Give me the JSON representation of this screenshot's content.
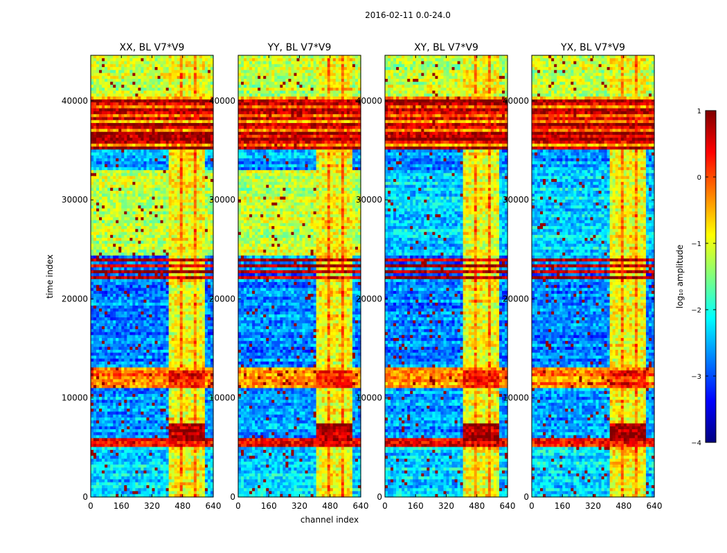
{
  "figure_title": "2016-02-11 0.0-24.0",
  "chart_data": {
    "type": "heatmap",
    "title": "2016-02-11 0.0-24.0",
    "shared_xlabel": "channel index",
    "shared_ylabel": "time index",
    "xlim": [
      0,
      640
    ],
    "ylim": [
      0,
      44600
    ],
    "x_ticks": [
      0,
      160,
      320,
      480,
      640
    ],
    "y_ticks": [
      0,
      10000,
      20000,
      30000,
      40000
    ],
    "panels": [
      {
        "title": "XX, BL V7*V9",
        "polarization": "XX"
      },
      {
        "title": "YY, BL V7*V9",
        "polarization": "YY"
      },
      {
        "title": "XY, BL V7*V9",
        "polarization": "XY"
      },
      {
        "title": "YX, BL V7*V9",
        "polarization": "YX"
      }
    ],
    "colorbar": {
      "label": "log₁₀ amplitude",
      "range": [
        -4,
        1
      ],
      "ticks": [
        1,
        0,
        -1,
        -2,
        -3,
        -4
      ],
      "tick_labels": [
        "1",
        "0",
        "−1",
        "−2",
        "−3",
        "−4"
      ],
      "colormap": "jet",
      "colors": [
        "#00007f",
        "#0000ff",
        "#007fff",
        "#00ffff",
        "#7fff7f",
        "#ffff00",
        "#ff7f00",
        "#ff0000",
        "#7f0000"
      ]
    }
  }
}
